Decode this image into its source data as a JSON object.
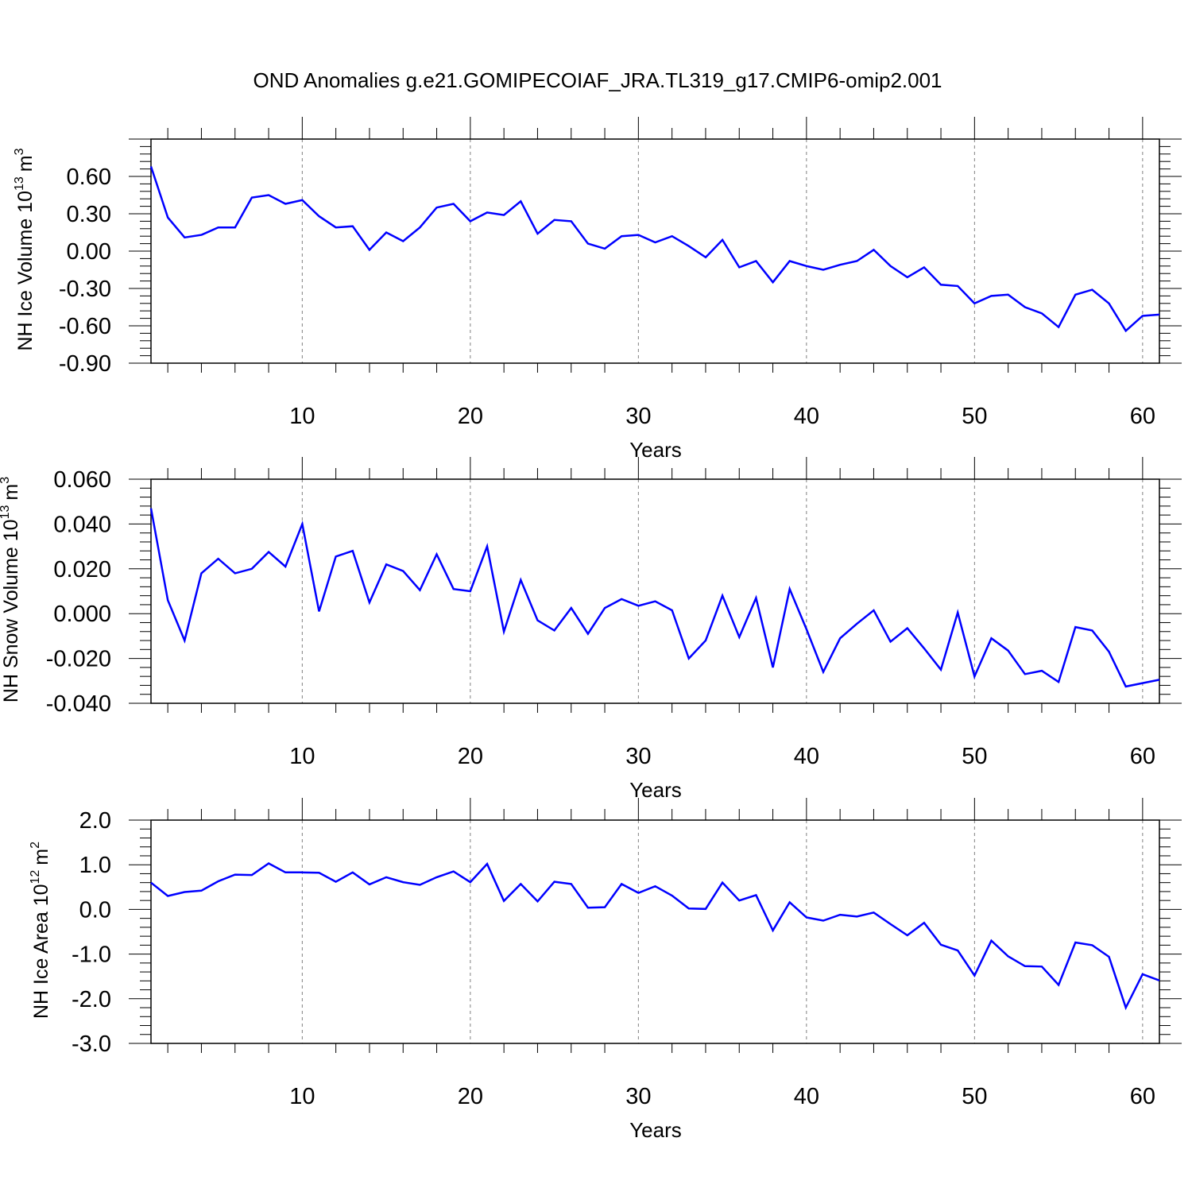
{
  "title": "OND Anomalies g.e21.GOMIPECOIAF_JRA.TL319_g17.CMIP6-omip2.001",
  "colors": {
    "line": "#0000ff",
    "axis": "#000000",
    "grid": "#808080"
  },
  "chart_data": [
    {
      "type": "line",
      "xlabel": "Years",
      "ylabel": "NH Ice Volume 10",
      "ylabel_exp": "13",
      "ylabel_unit": "m",
      "ylabel_unit_exp": "3",
      "xlim": [
        1,
        61
      ],
      "ylim": [
        -0.9,
        0.9
      ],
      "xticks": [
        "10",
        "20",
        "30",
        "40",
        "50",
        "60"
      ],
      "yticks": [
        "0.60",
        "0.30",
        "0.00",
        "-0.30",
        "-0.60",
        "-0.90"
      ],
      "grid": "vertical dashed at x ticks",
      "x": [
        1,
        2,
        3,
        4,
        5,
        6,
        7,
        8,
        9,
        10,
        11,
        12,
        13,
        14,
        15,
        16,
        17,
        18,
        19,
        20,
        21,
        22,
        23,
        24,
        25,
        26,
        27,
        28,
        29,
        30,
        31,
        32,
        33,
        34,
        35,
        36,
        37,
        38,
        39,
        40,
        41,
        42,
        43,
        44,
        45,
        46,
        47,
        48,
        49,
        50,
        51,
        52,
        53,
        54,
        55,
        56,
        57,
        58,
        59,
        60,
        61
      ],
      "series": [
        {
          "values": [
            0.68,
            0.27,
            0.11,
            0.13,
            0.19,
            0.19,
            0.43,
            0.45,
            0.38,
            0.41,
            0.28,
            0.19,
            0.2,
            0.01,
            0.15,
            0.08,
            0.19,
            0.35,
            0.38,
            0.24,
            0.31,
            0.29,
            0.4,
            0.14,
            0.25,
            0.24,
            0.06,
            0.02,
            0.12,
            0.13,
            0.07,
            0.12,
            0.04,
            -0.05,
            0.09,
            -0.13,
            -0.08,
            -0.25,
            -0.08,
            -0.12,
            -0.15,
            -0.11,
            -0.08,
            0.01,
            -0.12,
            -0.21,
            -0.13,
            -0.27,
            -0.28,
            -0.42,
            -0.36,
            -0.35,
            -0.45,
            -0.5,
            -0.61,
            -0.35,
            -0.31,
            -0.42,
            -0.64,
            -0.52,
            -0.51
          ]
        }
      ]
    },
    {
      "type": "line",
      "xlabel": "Years",
      "ylabel": "NH Snow Volume 10",
      "ylabel_exp": "13",
      "ylabel_unit": "m",
      "ylabel_unit_exp": "3",
      "xlim": [
        1,
        61
      ],
      "ylim": [
        -0.04,
        0.06
      ],
      "xticks": [
        "10",
        "20",
        "30",
        "40",
        "50",
        "60"
      ],
      "yticks": [
        "0.060",
        "0.040",
        "0.020",
        "0.000",
        "-0.020",
        "-0.040"
      ],
      "grid": "vertical dashed at x ticks",
      "x": [
        1,
        2,
        3,
        4,
        5,
        6,
        7,
        8,
        9,
        10,
        11,
        12,
        13,
        14,
        15,
        16,
        17,
        18,
        19,
        20,
        21,
        22,
        23,
        24,
        25,
        26,
        27,
        28,
        29,
        30,
        31,
        32,
        33,
        34,
        35,
        36,
        37,
        38,
        39,
        40,
        41,
        42,
        43,
        44,
        45,
        46,
        47,
        48,
        49,
        50,
        51,
        52,
        53,
        54,
        55,
        56,
        57,
        58,
        59,
        60,
        61
      ],
      "series": [
        {
          "values": [
            0.047,
            0.006,
            -0.012,
            0.018,
            0.0245,
            0.018,
            0.02,
            0.0275,
            0.021,
            0.04,
            0.001,
            0.0255,
            0.028,
            0.005,
            0.022,
            0.019,
            0.0105,
            0.0265,
            0.011,
            0.01,
            0.03,
            -0.008,
            0.015,
            -0.003,
            -0.0075,
            0.0025,
            -0.009,
            0.0025,
            0.0065,
            0.0035,
            0.0055,
            0.0015,
            -0.02,
            -0.012,
            0.008,
            -0.0105,
            0.007,
            -0.024,
            0.011,
            -0.007,
            -0.026,
            -0.011,
            -0.0045,
            0.0015,
            -0.0125,
            -0.0065,
            -0.0155,
            -0.025,
            0.0005,
            -0.028,
            -0.011,
            -0.0165,
            -0.027,
            -0.0255,
            -0.0305,
            -0.006,
            -0.0075,
            -0.017,
            -0.0325,
            -0.031,
            -0.0295
          ]
        }
      ]
    },
    {
      "type": "line",
      "xlabel": "Years",
      "ylabel": "NH Ice Area 10",
      "ylabel_exp": "12",
      "ylabel_unit": "m",
      "ylabel_unit_exp": "2",
      "xlim": [
        1,
        61
      ],
      "ylim": [
        -3.0,
        2.0
      ],
      "xticks": [
        "10",
        "20",
        "30",
        "40",
        "50",
        "60"
      ],
      "yticks": [
        "2.0",
        "1.0",
        "0.0",
        "-1.0",
        "-2.0",
        "-3.0"
      ],
      "grid": "vertical dashed at x ticks",
      "x": [
        1,
        2,
        3,
        4,
        5,
        6,
        7,
        8,
        9,
        10,
        11,
        12,
        13,
        14,
        15,
        16,
        17,
        18,
        19,
        20,
        21,
        22,
        23,
        24,
        25,
        26,
        27,
        28,
        29,
        30,
        31,
        32,
        33,
        34,
        35,
        36,
        37,
        38,
        39,
        40,
        41,
        42,
        43,
        44,
        45,
        46,
        47,
        48,
        49,
        50,
        51,
        52,
        53,
        54,
        55,
        56,
        57,
        58,
        59,
        60,
        61
      ],
      "series": [
        {
          "values": [
            0.6,
            0.3,
            0.39,
            0.42,
            0.63,
            0.78,
            0.77,
            1.03,
            0.83,
            0.83,
            0.82,
            0.62,
            0.83,
            0.56,
            0.72,
            0.61,
            0.55,
            0.72,
            0.85,
            0.61,
            1.02,
            0.19,
            0.57,
            0.18,
            0.62,
            0.57,
            0.04,
            0.05,
            0.57,
            0.37,
            0.52,
            0.31,
            0.02,
            0.01,
            0.6,
            0.2,
            0.32,
            -0.47,
            0.16,
            -0.18,
            -0.25,
            -0.12,
            -0.16,
            -0.07,
            -0.33,
            -0.58,
            -0.3,
            -0.79,
            -0.92,
            -1.48,
            -0.7,
            -1.05,
            -1.27,
            -1.28,
            -1.69,
            -0.74,
            -0.8,
            -1.06,
            -2.2,
            -1.45,
            -1.59
          ]
        }
      ]
    }
  ]
}
